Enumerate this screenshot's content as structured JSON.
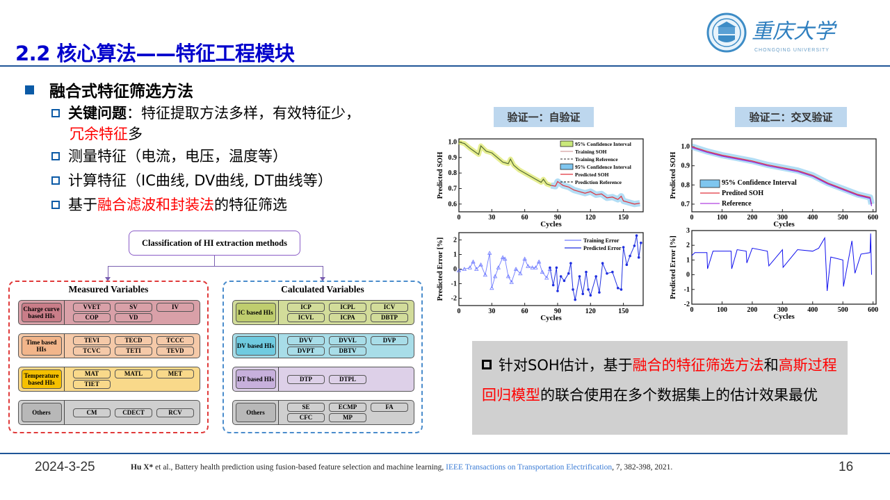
{
  "header": {
    "title": "2.2 核心算法——特征工程模块",
    "logo": {
      "name_cn": "重庆大学",
      "name_en": "CHONGQING UNIVERSITY"
    }
  },
  "bullets": {
    "heading": "融合式特征筛选方法",
    "items": [
      {
        "parts": [
          {
            "text": "关键问题",
            "style": "bold"
          },
          {
            "text": "：特征提取方法多样，有效特征少，",
            "style": "normal"
          }
        ],
        "line2": [
          {
            "text": "冗余特征",
            "style": "red"
          },
          {
            "text": "多",
            "style": "normal"
          }
        ]
      },
      {
        "parts": [
          {
            "text": "测量特征（电流，电压，温度等）",
            "style": "normal"
          }
        ]
      },
      {
        "parts": [
          {
            "text": "计算特征（IC曲线, DV曲线, DT曲线等）",
            "style": "normal"
          }
        ]
      },
      {
        "parts": [
          {
            "text": "基于",
            "style": "normal"
          },
          {
            "text": "融合滤波和封装法",
            "style": "red"
          },
          {
            "text": "的特征筛选",
            "style": "normal"
          }
        ]
      }
    ]
  },
  "diagram": {
    "title": "Classification of HI extraction methods",
    "measured": {
      "title": "Measured Variables",
      "rows": [
        {
          "head": "Charge curve based HIs",
          "color": "#d9a0a8",
          "head_color": "#c97d88",
          "chips": [
            "VVET",
            "SV",
            "IV",
            "COP",
            "VD"
          ]
        },
        {
          "head": "Time based HIs",
          "color": "#f5c9a8",
          "head_color": "#f2b58a",
          "chips": [
            "TEVI",
            "TECD",
            "TCCC",
            "TCVC",
            "TETI",
            "TEVD"
          ]
        },
        {
          "head": "Temperature based HIs",
          "color": "#f9d98a",
          "head_color": "#f5c000",
          "chips": [
            "MAT",
            "MATL",
            "MET",
            "TIET"
          ]
        },
        {
          "head": "Others",
          "color": "#cfcfcf",
          "head_color": "#b8b8b8",
          "chips": [
            "CM",
            "CDECT",
            "RCV"
          ]
        }
      ]
    },
    "calculated": {
      "title": "Calculated Variables",
      "rows": [
        {
          "head": "IC based HIs",
          "color": "#d2dc9a",
          "head_color": "#bfcd6e",
          "chips": [
            "ICP",
            "ICPL",
            "ICV",
            "ICVL",
            "ICPA",
            "DBTP"
          ]
        },
        {
          "head": "DV based HIs",
          "color": "#a8dde8",
          "head_color": "#6fcbe0",
          "chips": [
            "DVV",
            "DVVL",
            "DVP",
            "DVPT",
            "DBTV"
          ]
        },
        {
          "head": "DT based HIs",
          "color": "#ddd0e8",
          "head_color": "#c7b0dc",
          "chips": [
            "DTP",
            "DTPL"
          ]
        },
        {
          "head": "Others",
          "color": "#cfcfcf",
          "head_color": "#b8b8b8",
          "chips": [
            "SE",
            "ECMP",
            "FA",
            "CFC",
            "MP"
          ]
        }
      ]
    }
  },
  "validation": {
    "self_label": "验证一：自验证",
    "cross_label": "验证二：交叉验证"
  },
  "chart_data": [
    {
      "type": "line",
      "title": "Self-validation SOH",
      "xlabel": "Cycles",
      "ylabel": "Predicted SOH",
      "xticks": [
        0,
        30,
        60,
        90,
        120,
        150
      ],
      "yticks": [
        0.6,
        0.7,
        0.8,
        0.9,
        1.0
      ],
      "xlim": [
        0,
        168
      ],
      "ylim": [
        0.55,
        1.02
      ],
      "legend": [
        "95% Confidence Interval",
        "Training SOH",
        "Training Reference",
        "95% Confidence Interval",
        "Predicted SOH",
        "Prediction Reference"
      ],
      "series": [
        {
          "name": "Training SOH",
          "x": [
            0,
            5,
            10,
            18,
            20,
            25,
            30,
            35,
            40,
            45,
            47,
            50,
            55,
            60,
            65,
            70,
            75,
            77,
            80,
            84
          ],
          "values": [
            1.0,
            0.99,
            0.96,
            0.92,
            0.975,
            0.94,
            0.93,
            0.9,
            0.87,
            0.86,
            0.89,
            0.85,
            0.82,
            0.8,
            0.78,
            0.76,
            0.74,
            0.76,
            0.73,
            0.72
          ]
        },
        {
          "name": "Predicted SOH",
          "x": [
            84,
            88,
            90,
            95,
            100,
            105,
            110,
            115,
            120,
            125,
            130,
            135,
            140,
            145,
            148,
            150,
            155,
            160,
            165
          ],
          "values": [
            0.72,
            0.715,
            0.745,
            0.72,
            0.71,
            0.69,
            0.68,
            0.67,
            0.68,
            0.66,
            0.665,
            0.64,
            0.645,
            0.63,
            0.65,
            0.62,
            0.61,
            0.6,
            0.605
          ]
        }
      ]
    },
    {
      "type": "line",
      "title": "Cross-validation SOH",
      "xlabel": "Cycles",
      "ylabel": "Predicted SOH",
      "xticks": [
        0,
        100,
        200,
        300,
        400,
        500,
        600
      ],
      "yticks": [
        0.7,
        0.8,
        0.9,
        1.0
      ],
      "xlim": [
        0,
        610
      ],
      "ylim": [
        0.66,
        1.04
      ],
      "legend": [
        "95% Confidence Interval",
        "Predited SOH",
        "Reference"
      ],
      "series": [
        {
          "name": "Predited SOH",
          "x": [
            0,
            50,
            100,
            150,
            200,
            250,
            300,
            350,
            400,
            450,
            500,
            550,
            590,
            595
          ],
          "values": [
            1.0,
            0.975,
            0.955,
            0.94,
            0.925,
            0.905,
            0.89,
            0.875,
            0.85,
            0.81,
            0.78,
            0.75,
            0.735,
            0.7
          ]
        },
        {
          "name": "Reference",
          "x": [
            0,
            50,
            100,
            150,
            200,
            250,
            300,
            350,
            400,
            450,
            500,
            550,
            590,
            595
          ],
          "values": [
            0.995,
            0.97,
            0.95,
            0.935,
            0.92,
            0.9,
            0.885,
            0.87,
            0.845,
            0.805,
            0.775,
            0.745,
            0.73,
            0.69
          ]
        }
      ]
    },
    {
      "type": "line",
      "title": "Self-validation error",
      "xlabel": "Cycles",
      "ylabel": "Predicted Error [%]",
      "xticks": [
        0,
        30,
        60,
        90,
        120,
        150
      ],
      "yticks": [
        -2,
        -1,
        0,
        1,
        2
      ],
      "xlim": [
        0,
        168
      ],
      "ylim": [
        -2.5,
        2.5
      ],
      "legend": [
        "Training Error",
        "Predicted Error"
      ],
      "series": [
        {
          "name": "Training Error",
          "x": [
            0,
            5,
            10,
            13,
            16,
            20,
            24,
            28,
            30,
            33,
            36,
            40,
            42,
            45,
            48,
            52,
            56,
            60,
            63,
            67,
            70,
            73,
            76,
            80,
            83
          ],
          "values": [
            -0.1,
            0.0,
            0.1,
            0.5,
            0.0,
            0.3,
            -0.4,
            1.1,
            -1.3,
            -0.5,
            0.1,
            0.8,
            0.7,
            -0.5,
            -0.9,
            0.0,
            -0.3,
            0.7,
            0.2,
            0.1,
            0.1,
            0.5,
            -0.2,
            -0.6,
            0.0
          ]
        },
        {
          "name": "Predicted Error",
          "x": [
            83,
            86,
            89,
            90,
            93,
            96,
            100,
            102,
            104,
            106,
            110,
            113,
            116,
            118,
            120,
            125,
            128,
            131,
            135,
            140,
            145,
            148,
            150,
            153,
            156,
            160,
            162,
            164,
            166
          ],
          "values": [
            0.1,
            -1.1,
            0.1,
            -1.5,
            -0.5,
            -0.8,
            -0.3,
            0.4,
            -1.4,
            -2.1,
            -0.5,
            -1.7,
            -0.2,
            -1.4,
            -1.8,
            -0.5,
            -1.6,
            0.4,
            -0.3,
            -0.2,
            -1.3,
            -1.4,
            1.5,
            0.3,
            0.9,
            1.6,
            2.3,
            0.8,
            1.8
          ]
        }
      ]
    },
    {
      "type": "line",
      "title": "Cross-validation error",
      "xlabel": "Cycles",
      "ylabel": "Predicted Error [%]",
      "xticks": [
        0,
        100,
        200,
        300,
        400,
        500,
        600
      ],
      "yticks": [
        -2,
        -1,
        0,
        1,
        2,
        3
      ],
      "xlim": [
        0,
        610
      ],
      "ylim": [
        -2,
        3
      ],
      "series": [
        {
          "name": "Predicted Error",
          "x": [
            0,
            10,
            30,
            50,
            52,
            70,
            100,
            130,
            132,
            150,
            180,
            182,
            200,
            250,
            255,
            300,
            302,
            350,
            400,
            420,
            440,
            448,
            460,
            500,
            502,
            530,
            540,
            560,
            590,
            592,
            595
          ],
          "values": [
            1.3,
            1.5,
            1.5,
            1.5,
            0.4,
            1.6,
            1.6,
            1.6,
            0.4,
            1.7,
            1.6,
            0.8,
            1.8,
            1.6,
            0.6,
            1.7,
            0.5,
            1.7,
            1.6,
            1.8,
            2.5,
            -1.1,
            1.2,
            1.0,
            -0.8,
            2.3,
            0.1,
            1.4,
            1.5,
            2.8,
            0.0
          ]
        }
      ]
    }
  ],
  "callout": {
    "parts": [
      {
        "text": "针对SOH估计，基于",
        "style": "normal"
      },
      {
        "text": "融合的特征筛选方法",
        "style": "red"
      },
      {
        "text": "和",
        "style": "normal"
      },
      {
        "text": "高斯过程回归模型",
        "style": "red"
      },
      {
        "text": "的联合使用在多个数据集上的估计效果最优",
        "style": "normal"
      }
    ]
  },
  "footer": {
    "date": "2024-3-25",
    "cite_author": "Hu X*",
    "cite_text": " et al., Battery health prediction using fusion-based feature selection and machine learning, ",
    "cite_journal": "IEEE Transactions on Transportation Electrification",
    "cite_tail": ", 7, 382-398, 2021.",
    "page": "16"
  },
  "colors": {
    "title": "#0000cc",
    "rule": "#1f5597",
    "accent_red": "#ff0000",
    "bullet_blue": "#0b5aa6",
    "tag_bg": "#bdd7ee",
    "callout_bg": "#d0d0d0"
  }
}
